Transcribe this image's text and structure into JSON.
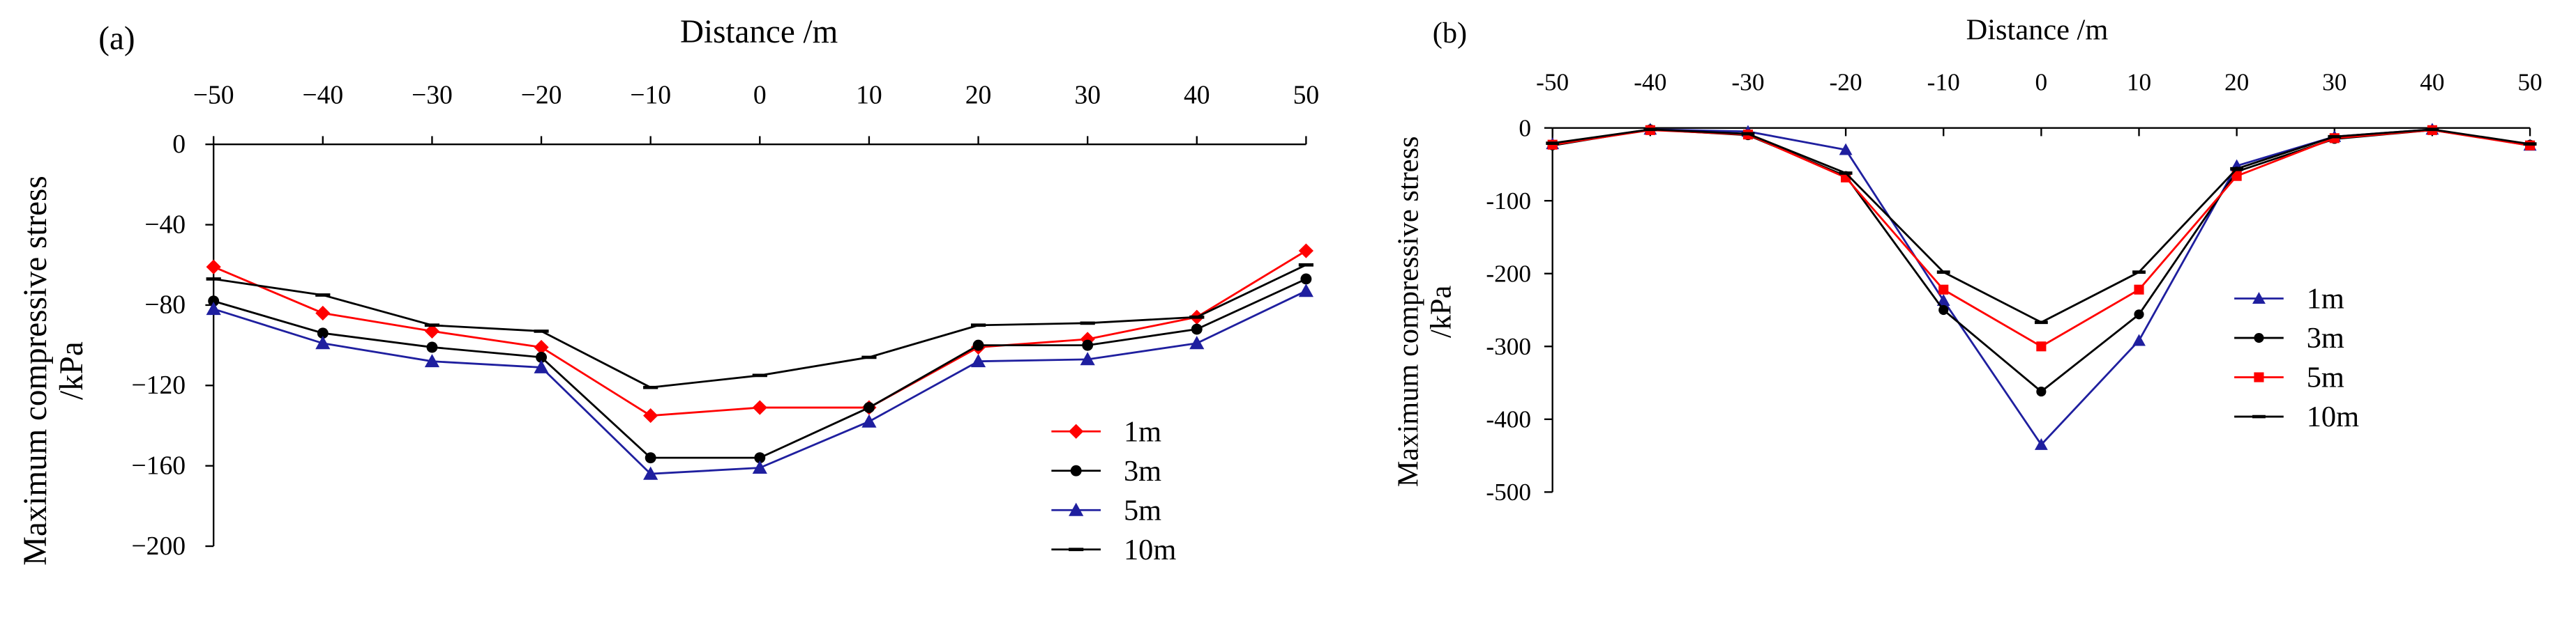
{
  "chart_data": [
    {
      "panel_label": "(a)",
      "type": "line",
      "xlabel": "Distance /m",
      "ylabel_line1": "Maximum compressive stress",
      "ylabel_line2": "/kPa",
      "x": [
        -50,
        -40,
        -30,
        -20,
        -10,
        0,
        10,
        20,
        30,
        40,
        50
      ],
      "x_ticks": [
        "−50",
        "−40",
        "−30",
        "−20",
        "−10",
        "0",
        "10",
        "20",
        "30",
        "40",
        "50"
      ],
      "xlim": [
        -50,
        50
      ],
      "ylim": [
        -200,
        0
      ],
      "y_ticks": [
        0,
        -40,
        -80,
        -120,
        -160,
        -200
      ],
      "y_tick_labels": [
        "0",
        "−40",
        "−80",
        "−120",
        "−160",
        "−200"
      ],
      "legend_position": "bottom-right",
      "series": [
        {
          "name": "1m",
          "color": "#ff0000",
          "marker": "diamond",
          "values": [
            -61,
            -84,
            -93,
            -101,
            -135,
            -131,
            -131,
            -101,
            -97,
            -86,
            -53
          ]
        },
        {
          "name": "3m",
          "color": "#000000",
          "marker": "circle",
          "values": [
            -78,
            -94,
            -101,
            -106,
            -156,
            -156,
            -131,
            -100,
            -100,
            -92,
            -67
          ]
        },
        {
          "name": "5m",
          "color": "#1f1f9f",
          "marker": "triangle",
          "values": [
            -82,
            -99,
            -108,
            -111,
            -164,
            -161,
            -138,
            -108,
            -107,
            -99,
            -73
          ]
        },
        {
          "name": "10m",
          "color": "#000000",
          "marker": "dash",
          "values": [
            -67,
            -75,
            -90,
            -93,
            -121,
            -115,
            -106,
            -90,
            -89,
            -86,
            -60
          ]
        }
      ]
    },
    {
      "panel_label": "(b)",
      "type": "line",
      "xlabel": "Distance /m",
      "ylabel_line1": "Maximum compressive stress",
      "ylabel_line2": "/kPa",
      "x": [
        -50,
        -40,
        -30,
        -20,
        -10,
        0,
        10,
        20,
        30,
        40,
        50
      ],
      "x_ticks": [
        "-50",
        "-40",
        "-30",
        "-20",
        "-10",
        "0",
        "10",
        "20",
        "30",
        "40",
        "50"
      ],
      "xlim": [
        -50,
        50
      ],
      "ylim": [
        -500,
        0
      ],
      "y_ticks": [
        0,
        -100,
        -200,
        -300,
        -400,
        -500
      ],
      "y_tick_labels": [
        "0",
        "-100",
        "-200",
        "-300",
        "-400",
        "-500"
      ],
      "legend_position": "middle-right",
      "series": [
        {
          "name": "1m",
          "color": "#1f1f9f",
          "marker": "triangle",
          "values": [
            -22,
            -2,
            -5,
            -30,
            -237,
            -435,
            -292,
            -52,
            -12,
            -2,
            -24
          ]
        },
        {
          "name": "3m",
          "color": "#000000",
          "marker": "circle",
          "values": [
            -24,
            -2,
            -10,
            -66,
            -250,
            -362,
            -256,
            -60,
            -15,
            -3,
            -23
          ]
        },
        {
          "name": "5m",
          "color": "#ff0000",
          "marker": "square",
          "values": [
            -23,
            -3,
            -9,
            -68,
            -222,
            -300,
            -222,
            -66,
            -14,
            -3,
            -24
          ]
        },
        {
          "name": "10m",
          "color": "#000000",
          "marker": "dash",
          "values": [
            -21,
            -2,
            -8,
            -62,
            -198,
            -267,
            -198,
            -56,
            -12,
            -2,
            -22
          ]
        }
      ]
    }
  ]
}
